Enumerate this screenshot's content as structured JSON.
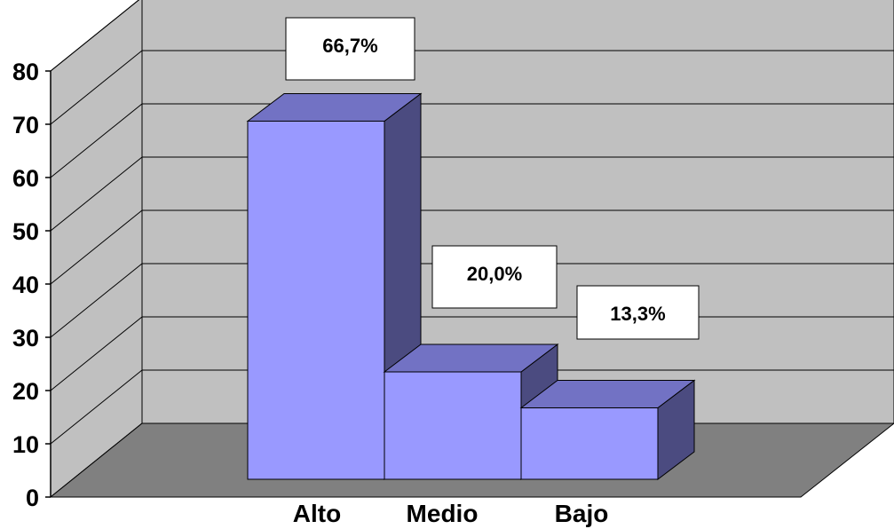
{
  "chart_data": {
    "type": "bar",
    "three_d": true,
    "categories": [
      "Alto",
      "Medio",
      "Bajo"
    ],
    "values": [
      66.7,
      20.0,
      13.3
    ],
    "data_labels": [
      "66,7%",
      "20,0%",
      "13,3%"
    ],
    "y_ticks": [
      "0",
      "10",
      "20",
      "30",
      "40",
      "50",
      "60",
      "70",
      "80"
    ],
    "ylim": [
      0,
      80
    ],
    "grid": true,
    "colors": {
      "bar_front": "#9999ff",
      "bar_top": "#7272c4",
      "bar_side": "#4b4b80",
      "back_wall": "#c0c0c0",
      "floor": "#808080",
      "label_box": "#ffffff"
    }
  }
}
